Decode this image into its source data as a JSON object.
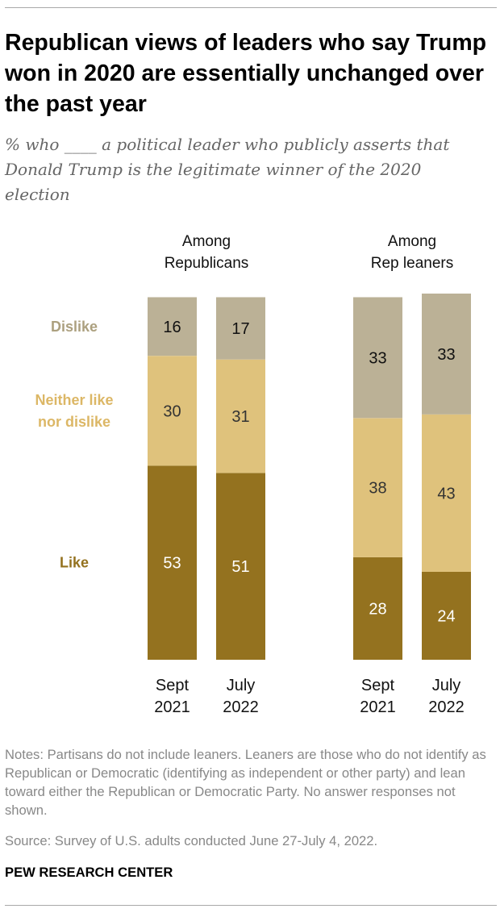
{
  "title": "Republican views of leaders who say Trump won in 2020 are essentially unchanged over the past year",
  "subtitle": "% who ____ a political leader who publicly asserts that Donald Trump is the legitimate winner of the 2020 election",
  "notes": "Notes: Partisans do not include leaners. Leaners are those who do not identify as Republican or Democratic (identifying as independent or other party) and lean toward either the Republican or Democratic Party. No answer responses not shown.",
  "source": "Source: Survey of U.S. adults conducted June 27-July 4, 2022.",
  "brand": "PEW RESEARCH CENTER",
  "chart_data": {
    "type": "bar",
    "stacked": true,
    "orientation": "vertical",
    "groups": [
      {
        "label_lines": [
          "Among",
          "Republicans"
        ],
        "bars": [
          {
            "label_lines": [
              "Sept",
              "2021"
            ],
            "values": {
              "Like": 53,
              "Neither like nor dislike": 30,
              "Dislike": 16
            }
          },
          {
            "label_lines": [
              "July",
              "2022"
            ],
            "values": {
              "Like": 51,
              "Neither like nor dislike": 31,
              "Dislike": 17
            }
          }
        ]
      },
      {
        "label_lines": [
          "Among",
          "Rep leaners"
        ],
        "bars": [
          {
            "label_lines": [
              "Sept",
              "2021"
            ],
            "values": {
              "Like": 28,
              "Neither like nor dislike": 38,
              "Dislike": 33
            }
          },
          {
            "label_lines": [
              "July",
              "2022"
            ],
            "values": {
              "Like": 24,
              "Neither like nor dislike": 43,
              "Dislike": 33
            }
          }
        ]
      }
    ],
    "series": [
      {
        "name": "Like",
        "label_lines": [
          "Like"
        ],
        "color": "#94721f",
        "text_color": "#ffffff"
      },
      {
        "name": "Neither like nor dislike",
        "label_lines": [
          "Neither like",
          "nor dislike"
        ],
        "color": "#dfc27c",
        "text_color": "#333333",
        "label_color": "#dcb766"
      },
      {
        "name": "Dislike",
        "label_lines": [
          "Dislike"
        ],
        "color": "#bbb196",
        "text_color": "#111111",
        "label_color": "#aca07f"
      }
    ],
    "legend_position": "left",
    "grid": false
  }
}
